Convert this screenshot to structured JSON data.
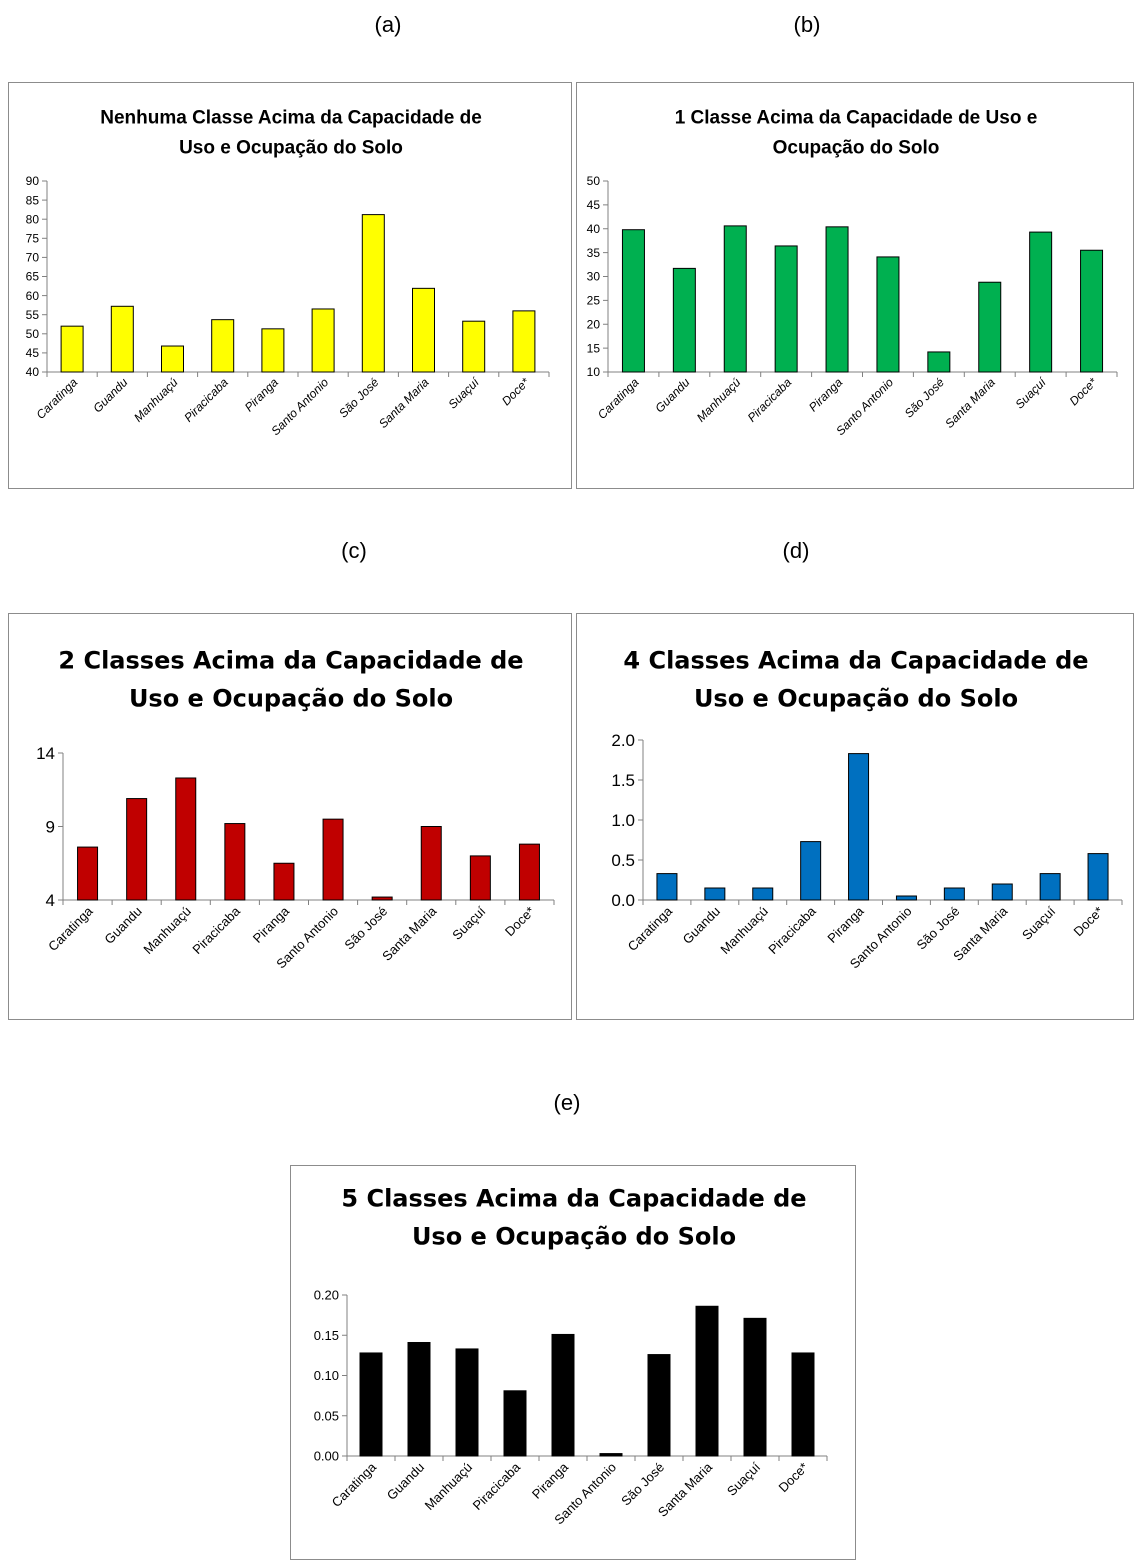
{
  "panel_labels": [
    "(a)",
    "(b)",
    "(c)",
    "(d)",
    "(e)"
  ],
  "chart_data": [
    {
      "type": "bar",
      "title_lines": [
        "Nenhuma Classe Acima da Capacidade de",
        "Uso e Ocupação do Solo"
      ],
      "categories": [
        "Caratinga",
        "Guandu",
        "Manhuaçú",
        "Piracicaba",
        "Piranga",
        "Santo Antonio",
        "São José",
        "Santa Maria",
        "Suaçuí",
        "Doce*"
      ],
      "values": [
        52,
        57.2,
        46.8,
        53.7,
        51.3,
        56.5,
        81.2,
        61.9,
        53.3,
        56
      ],
      "ylim": [
        40,
        90
      ],
      "yticks": [
        "40",
        "45",
        "50",
        "55",
        "60",
        "65",
        "70",
        "75",
        "80",
        "85",
        "90"
      ],
      "bar_color": "#ffff00",
      "italic_labels": true
    },
    {
      "type": "bar",
      "title_lines": [
        "1 Classe Acima da Capacidade de Uso e",
        "Ocupação do Solo"
      ],
      "categories": [
        "Caratinga",
        "Guandu",
        "Manhuaçú",
        "Piracicaba",
        "Piranga",
        "Santo Antonio",
        "São José",
        "Santa Maria",
        "Suaçuí",
        "Doce*"
      ],
      "values": [
        39.8,
        31.7,
        40.6,
        36.4,
        40.4,
        34.1,
        14.2,
        28.8,
        39.3,
        35.5
      ],
      "ylim": [
        10,
        50
      ],
      "yticks": [
        "10",
        "15",
        "20",
        "25",
        "30",
        "35",
        "40",
        "45",
        "50"
      ],
      "bar_color": "#00b050",
      "italic_labels": true
    },
    {
      "type": "bar",
      "title_lines": [
        "2 Classes Acima da Capacidade de",
        "Uso e Ocupação do Solo"
      ],
      "categories": [
        "Caratinga",
        "Guandu",
        "Manhuaçú",
        "Piracicaba",
        "Piranga",
        "Santo Antonio",
        "São José",
        "Santa Maria",
        "Suaçuí",
        "Doce*"
      ],
      "values": [
        7.6,
        10.9,
        12.3,
        9.2,
        6.5,
        9.5,
        4.2,
        9.0,
        7.0,
        7.8
      ],
      "ylim": [
        4,
        14
      ],
      "yticks": [
        "4",
        "9",
        "14"
      ],
      "bar_color": "#c00000",
      "italic_labels": false
    },
    {
      "type": "bar",
      "title_lines": [
        "4 Classes Acima da Capacidade de",
        "Uso e Ocupação do Solo"
      ],
      "categories": [
        "Caratinga",
        "Guandu",
        "Manhuaçú",
        "Piracicaba",
        "Piranga",
        "Santo Antonio",
        "São José",
        "Santa Maria",
        "Suaçuí",
        "Doce*"
      ],
      "values": [
        0.33,
        0.15,
        0.15,
        0.73,
        1.83,
        0.05,
        0.15,
        0.2,
        0.33,
        0.58
      ],
      "ylim": [
        0,
        2
      ],
      "yticks": [
        "0.0",
        "0.5",
        "1.0",
        "1.5",
        "2.0"
      ],
      "bar_color": "#0070c0",
      "italic_labels": false
    },
    {
      "type": "bar",
      "title_lines": [
        "5 Classes Acima da Capacidade de",
        "Uso e Ocupação do Solo"
      ],
      "categories": [
        "Caratinga",
        "Guandu",
        "Manhuaçú",
        "Piracicaba",
        "Piranga",
        "Santo Antonio",
        "São José",
        "Santa Maria",
        "Suaçuí",
        "Doce*"
      ],
      "values": [
        0.128,
        0.141,
        0.133,
        0.081,
        0.151,
        0.003,
        0.126,
        0.186,
        0.171,
        0.128
      ],
      "ylim": [
        0,
        0.2
      ],
      "yticks": [
        "0.00",
        "0.05",
        "0.10",
        "0.15",
        "0.20"
      ],
      "bar_color": "#000000",
      "italic_labels": false
    }
  ]
}
